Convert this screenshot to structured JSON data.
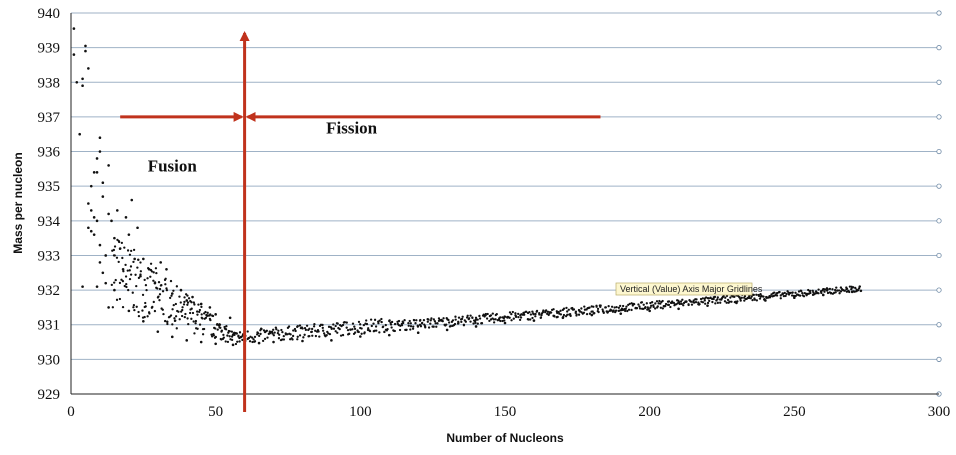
{
  "chart_data": {
    "type": "scatter",
    "title": "",
    "xlabel": "Number of Nucleons",
    "ylabel": "Mass per nucleon",
    "xlim": [
      0,
      300
    ],
    "ylim": [
      929,
      940
    ],
    "x_ticks": [
      "0",
      "50",
      "100",
      "150",
      "200",
      "250",
      "300"
    ],
    "y_ticks": [
      "929",
      "930",
      "931",
      "932",
      "933",
      "934",
      "935",
      "936",
      "937",
      "938",
      "939",
      "940"
    ],
    "grid": "horizontal major gridlines",
    "legend": "none",
    "series": [
      {
        "marker_color": "#111111",
        "description_points_sampled": true,
        "points": [
          [
            1,
            939.55
          ],
          [
            1,
            938.8
          ],
          [
            2,
            938.0
          ],
          [
            3,
            936.5
          ],
          [
            4,
            937.9
          ],
          [
            4,
            938.1
          ],
          [
            5,
            939.05
          ],
          [
            5,
            938.9
          ],
          [
            6,
            938.4
          ],
          [
            6,
            934.5
          ],
          [
            6,
            933.8
          ],
          [
            7,
            935.0
          ],
          [
            7,
            933.7
          ],
          [
            7,
            934.3
          ],
          [
            8,
            935.4
          ],
          [
            8,
            933.6
          ],
          [
            8,
            934.1
          ],
          [
            9,
            935.8
          ],
          [
            9,
            935.4
          ],
          [
            9,
            934.0
          ],
          [
            10,
            936.4
          ],
          [
            10,
            936.0
          ],
          [
            10,
            933.3
          ],
          [
            10,
            932.8
          ],
          [
            11,
            935.1
          ],
          [
            11,
            934.7
          ],
          [
            11,
            932.5
          ],
          [
            12,
            933.0
          ],
          [
            12,
            932.2
          ],
          [
            13,
            935.6
          ],
          [
            13,
            934.2
          ],
          [
            13,
            931.5
          ],
          [
            14,
            934.0
          ],
          [
            15,
            933.5
          ],
          [
            15,
            932.0
          ],
          [
            4,
            932.1
          ],
          [
            9,
            932.1
          ],
          [
            16,
            934.3
          ],
          [
            17,
            933.2
          ],
          [
            18,
            932.6
          ],
          [
            19,
            934.1
          ],
          [
            20,
            933.6
          ],
          [
            21,
            934.6
          ],
          [
            22,
            932.9
          ],
          [
            23,
            933.8
          ],
          [
            24,
            932.4
          ],
          [
            25,
            932.9
          ],
          [
            27,
            932.6
          ],
          [
            29,
            932.2
          ],
          [
            31,
            932.8
          ],
          [
            33,
            932.6
          ],
          [
            35,
            931.9
          ],
          [
            38,
            932.0
          ],
          [
            40,
            931.7
          ],
          [
            42,
            931.8
          ],
          [
            45,
            931.6
          ],
          [
            48,
            931.5
          ],
          [
            50,
            931.3
          ],
          [
            55,
            931.2
          ],
          [
            20,
            931.4
          ],
          [
            25,
            931.1
          ],
          [
            30,
            930.8
          ],
          [
            35,
            930.65
          ],
          [
            40,
            930.55
          ],
          [
            45,
            930.5
          ],
          [
            50,
            930.45
          ],
          [
            56,
            930.42
          ],
          [
            60,
            930.44
          ],
          [
            65,
            930.47
          ],
          [
            70,
            930.5
          ],
          [
            80,
            930.53
          ],
          [
            90,
            930.55
          ],
          [
            100,
            930.66
          ],
          [
            110,
            930.7
          ],
          [
            120,
            930.77
          ],
          [
            130,
            930.85
          ],
          [
            140,
            930.95
          ],
          [
            150,
            931.05
          ],
          [
            160,
            931.12
          ],
          [
            170,
            931.2
          ],
          [
            180,
            931.28
          ],
          [
            190,
            931.32
          ],
          [
            200,
            931.4
          ],
          [
            210,
            931.46
          ],
          [
            220,
            931.55
          ],
          [
            230,
            931.63
          ],
          [
            240,
            931.7
          ],
          [
            250,
            931.78
          ],
          [
            260,
            931.86
          ],
          [
            270,
            931.95
          ],
          [
            273,
            931.98
          ]
        ]
      }
    ],
    "annotations": [
      {
        "text": "Fusion",
        "x": 35,
        "y": 935.6
      },
      {
        "text": "Fission",
        "x": 97,
        "y": 936.7
      }
    ],
    "marker_lines": {
      "vertical_at_x": 60,
      "horizontal_at_y": 937,
      "left_arrow_from_x": 17,
      "right_arrow_to_x": 183,
      "color": "#c0321c"
    },
    "tooltip": "Vertical (Value) Axis Major Gridlines"
  }
}
